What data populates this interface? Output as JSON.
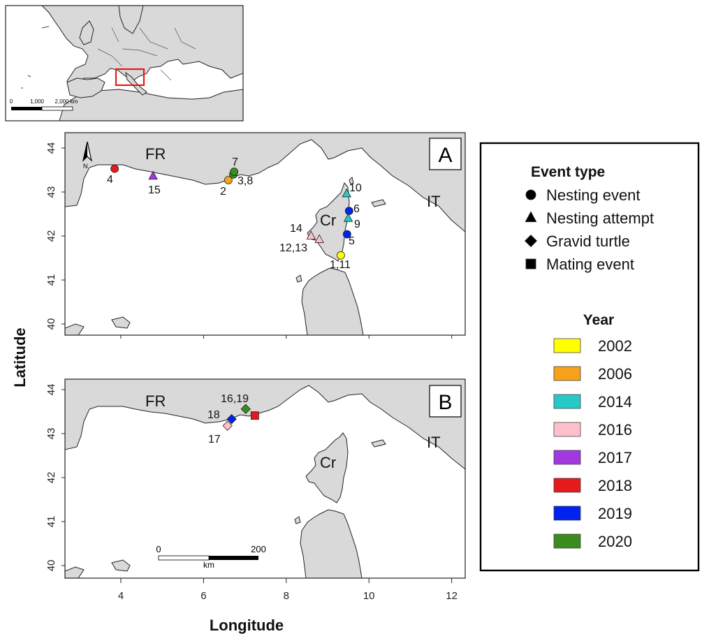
{
  "figure": {
    "xlabel": "Longitude",
    "ylabel": "Latitude",
    "x_ticks": [
      "4",
      "6",
      "8",
      "10",
      "12"
    ],
    "y_ticks": [
      "40",
      "41",
      "42",
      "43",
      "44"
    ]
  },
  "inset": {
    "scale_labels": [
      "0",
      "1,000",
      "2,000 km"
    ]
  },
  "panel_a": {
    "letter": "A",
    "countries": {
      "fr": "FR",
      "it": "IT",
      "cr": "Cr"
    },
    "north_label": "N"
  },
  "panel_b": {
    "letter": "B",
    "countries": {
      "fr": "FR",
      "it": "IT",
      "cr": "Cr"
    },
    "scale_labels": [
      "0",
      "200",
      "km"
    ]
  },
  "legend": {
    "event_title": "Event type",
    "event_types": [
      {
        "label": "Nesting event",
        "shape": "circle"
      },
      {
        "label": "Nesting attempt",
        "shape": "triangle"
      },
      {
        "label": "Gravid turtle",
        "shape": "diamond"
      },
      {
        "label": "Mating event",
        "shape": "square"
      }
    ],
    "year_title": "Year",
    "years": [
      {
        "label": "2002",
        "color": "#ffff00"
      },
      {
        "label": "2006",
        "color": "#f7a21b"
      },
      {
        "label": "2014",
        "color": "#27c9c6"
      },
      {
        "label": "2016",
        "color": "#ffc0cb"
      },
      {
        "label": "2017",
        "color": "#a338e0"
      },
      {
        "label": "2018",
        "color": "#e41a1c"
      },
      {
        "label": "2019",
        "color": "#0022ee"
      },
      {
        "label": "2020",
        "color": "#3b8c1e"
      }
    ]
  },
  "chart_data": {
    "type": "scatter",
    "xlabel": "Longitude",
    "ylabel": "Latitude",
    "xlim": [
      2.6,
      12.4
    ],
    "panels": [
      {
        "panel": "A",
        "ylim": [
          39.7,
          44.3
        ],
        "points": [
          {
            "id": "4",
            "lon": 3.85,
            "lat": 43.53,
            "type": "circle",
            "year": "2018"
          },
          {
            "id": "15",
            "lon": 4.78,
            "lat": 43.36,
            "type": "triangle",
            "year": "2017"
          },
          {
            "id": "2",
            "lon": 6.6,
            "lat": 43.27,
            "type": "circle",
            "year": "2006"
          },
          {
            "id": "3,8",
            "lon": 6.72,
            "lat": 43.4,
            "type": "circle",
            "year": "2020"
          },
          {
            "id": "7",
            "lon": 6.74,
            "lat": 43.46,
            "type": "circle",
            "year": "2020"
          },
          {
            "id": "10",
            "lon": 9.46,
            "lat": 42.96,
            "type": "triangle",
            "year": "2014"
          },
          {
            "id": "6",
            "lon": 9.52,
            "lat": 42.57,
            "type": "circle",
            "year": "2019"
          },
          {
            "id": "9",
            "lon": 9.5,
            "lat": 42.4,
            "type": "triangle",
            "year": "2014"
          },
          {
            "id": "5",
            "lon": 9.47,
            "lat": 42.04,
            "type": "circle",
            "year": "2019"
          },
          {
            "id": "14",
            "lon": 8.6,
            "lat": 42.0,
            "type": "triangle",
            "year": "2016"
          },
          {
            "id": "12,13",
            "lon": 8.8,
            "lat": 41.92,
            "type": "triangle",
            "year": "2016"
          },
          {
            "id": "1,11",
            "lon": 9.32,
            "lat": 41.56,
            "type": "circle",
            "year": "2002"
          }
        ]
      },
      {
        "panel": "B",
        "ylim": [
          39.7,
          44.3
        ],
        "points": [
          {
            "id": "16,19",
            "lon": 7.02,
            "lat": 43.56,
            "type": "diamond",
            "year": "2020"
          },
          {
            "id": "mating-2018",
            "lon": 7.24,
            "lat": 43.41,
            "type": "square",
            "year": "2018"
          },
          {
            "id": "18",
            "lon": 6.68,
            "lat": 43.33,
            "type": "diamond",
            "year": "2019"
          },
          {
            "id": "17",
            "lon": 6.58,
            "lat": 43.18,
            "type": "diamond",
            "year": "2016"
          }
        ]
      }
    ]
  }
}
